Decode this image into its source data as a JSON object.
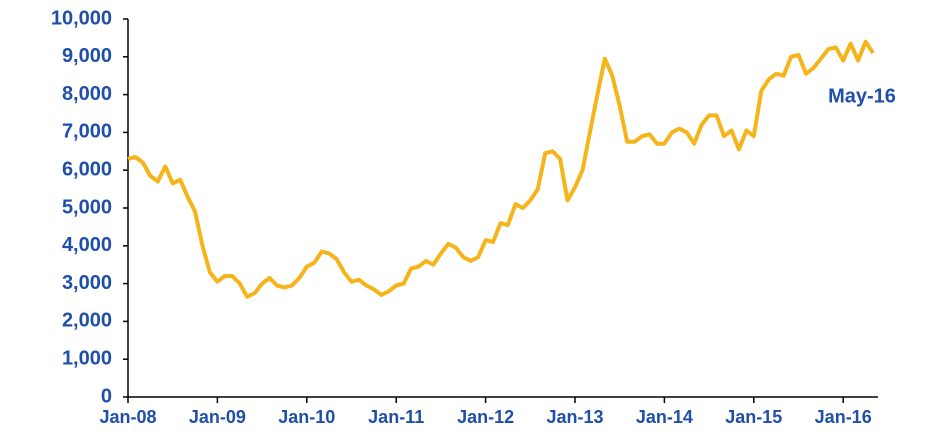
{
  "chart_data": {
    "type": "line",
    "annotation": "May-16",
    "categories": [
      "Jan-08",
      null,
      null,
      null,
      null,
      null,
      null,
      null,
      null,
      null,
      null,
      null,
      "Jan-09",
      null,
      null,
      null,
      null,
      null,
      null,
      null,
      null,
      null,
      null,
      null,
      "Jan-10",
      null,
      null,
      null,
      null,
      null,
      null,
      null,
      null,
      null,
      null,
      null,
      "Jan-11",
      null,
      null,
      null,
      null,
      null,
      null,
      null,
      null,
      null,
      null,
      null,
      "Jan-12",
      null,
      null,
      null,
      null,
      null,
      null,
      null,
      null,
      null,
      null,
      null,
      "Jan-13",
      null,
      null,
      null,
      null,
      null,
      null,
      null,
      null,
      null,
      null,
      null,
      "Jan-14",
      null,
      null,
      null,
      null,
      null,
      null,
      null,
      null,
      null,
      null,
      null,
      "Jan-15",
      null,
      null,
      null,
      null,
      null,
      null,
      null,
      null,
      null,
      null,
      null,
      "Jan-16",
      null,
      null,
      null,
      null
    ],
    "series": [
      {
        "color": "#f6b41b",
        "values": [
          6300,
          6350,
          6200,
          5850,
          5700,
          6100,
          5650,
          5750,
          5300,
          4900,
          4000,
          3300,
          3050,
          3200,
          3200,
          3000,
          2650,
          2750,
          3000,
          3150,
          2950,
          2900,
          2950,
          3150,
          3450,
          3550,
          3850,
          3800,
          3650,
          3300,
          3050,
          3100,
          2950,
          2850,
          2700,
          2800,
          2950,
          3000,
          3400,
          3450,
          3600,
          3500,
          3800,
          4050,
          3950,
          3700,
          3600,
          3700,
          4150,
          4100,
          4600,
          4550,
          5100,
          5000,
          5200,
          5500,
          6450,
          6500,
          6300,
          5200,
          5550,
          6000,
          7000,
          8000,
          8950,
          8500,
          7700,
          6750,
          6750,
          6900,
          6950,
          6700,
          6700,
          7000,
          7100,
          7000,
          6700,
          7200,
          7450,
          7450,
          6900,
          7050,
          6550,
          7050,
          6900,
          8100,
          8400,
          8550,
          8500,
          9000,
          9050,
          8550,
          8700,
          8950,
          9200,
          9250,
          8900,
          9350,
          8900,
          9400,
          9100
        ]
      }
    ],
    "ylim": [
      0,
      10000
    ],
    "yticks": [
      0,
      {
        "value": 1000,
        "label": "1,000"
      },
      {
        "value": 2000,
        "label": "2,000"
      },
      {
        "value": 3000,
        "label": "3,000"
      },
      {
        "value": 4000,
        "label": "4,000"
      },
      {
        "value": 5000,
        "label": "5,000"
      },
      {
        "value": 6000,
        "label": "6,000"
      },
      {
        "value": 7000,
        "label": "7,000"
      },
      {
        "value": 8000,
        "label": "8,000"
      },
      {
        "value": 9000,
        "label": "9,000"
      },
      {
        "value": 10000,
        "label": "10,000"
      }
    ]
  }
}
